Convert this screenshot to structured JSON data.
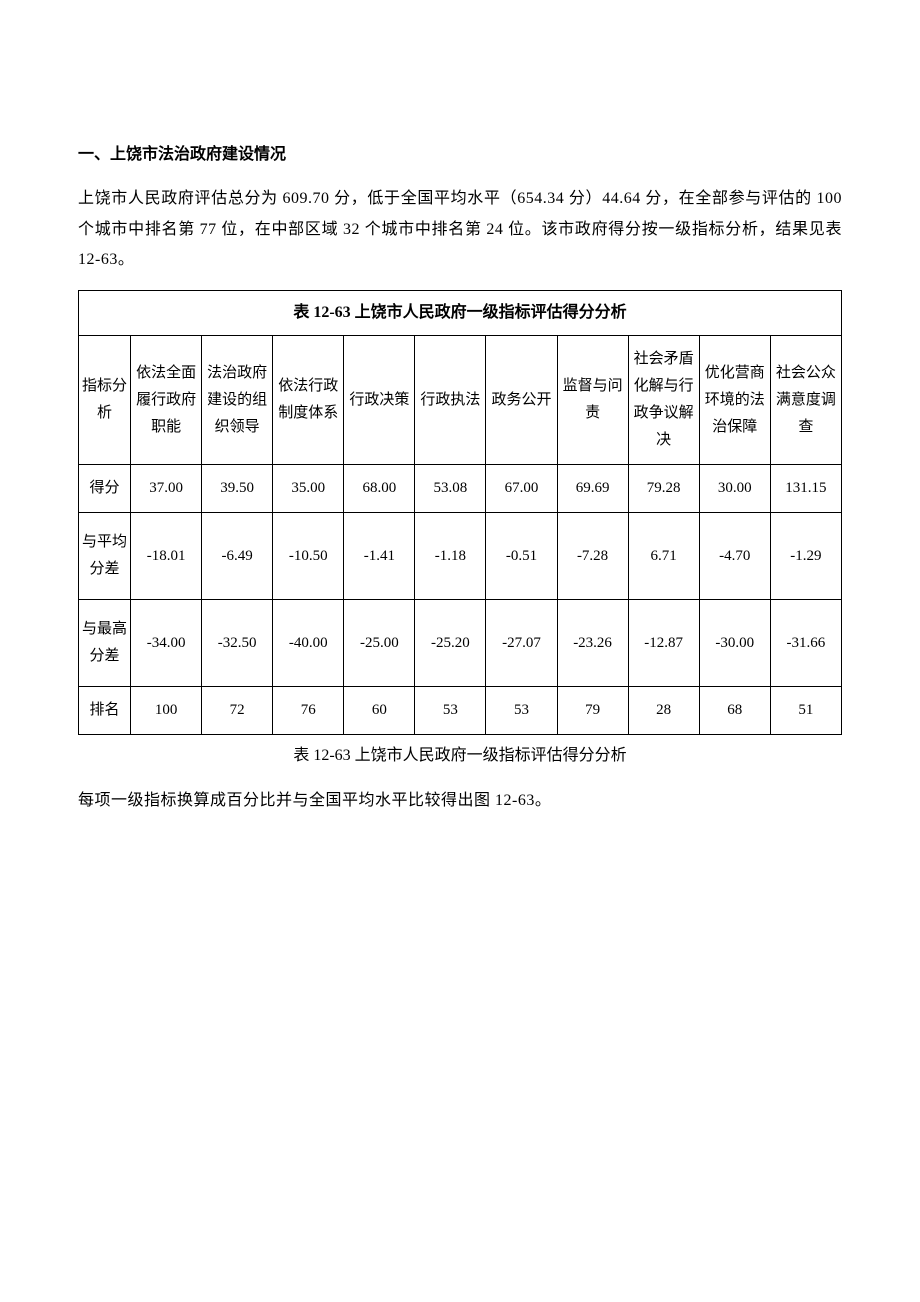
{
  "section_heading": "一、上饶市法治政府建设情况",
  "paragraph1": "上饶市人民政府评估总分为 609.70 分，低于全国平均水平（654.34 分）44.64 分，在全部参与评估的 100 个城市中排名第 77 位，在中部区域 32 个城市中排名第 24 位。该市政府得分按一级指标分析，结果见表 12-63。",
  "table": {
    "title": "表 12-63  上饶市人民政府一级指标评估得分分析",
    "columns": [
      "指标分析",
      "依法全面履行政府职能",
      "法治政府建设的组织领导",
      "依法行政制度体系",
      "行政决策",
      "行政执法",
      "政务公开",
      "监督与问责",
      "社会矛盾化解与行政争议解决",
      "优化营商环境的法治保障",
      "社会公众满意度调查"
    ],
    "rows": [
      {
        "label": "得分",
        "values": [
          "37.00",
          "39.50",
          "35.00",
          "68.00",
          "53.08",
          "67.00",
          "69.69",
          "79.28",
          "30.00",
          "131.15"
        ]
      },
      {
        "label": "与平均分差",
        "values": [
          "-18.01",
          "-6.49",
          "-10.50",
          "-1.41",
          "-1.18",
          "-0.51",
          "-7.28",
          "6.71",
          "-4.70",
          "-1.29"
        ]
      },
      {
        "label": "与最高分差",
        "values": [
          "-34.00",
          "-32.50",
          "-40.00",
          "-25.00",
          "-25.20",
          "-27.07",
          "-23.26",
          "-12.87",
          "-30.00",
          "-31.66"
        ]
      },
      {
        "label": "排名",
        "values": [
          "100",
          "72",
          "76",
          "60",
          "53",
          "53",
          "79",
          "28",
          "68",
          "51"
        ]
      }
    ]
  },
  "caption": "表 12-63  上饶市人民政府一级指标评估得分分析",
  "paragraph2": "每项一级指标换算成百分比并与全国平均水平比较得出图 12-63。"
}
